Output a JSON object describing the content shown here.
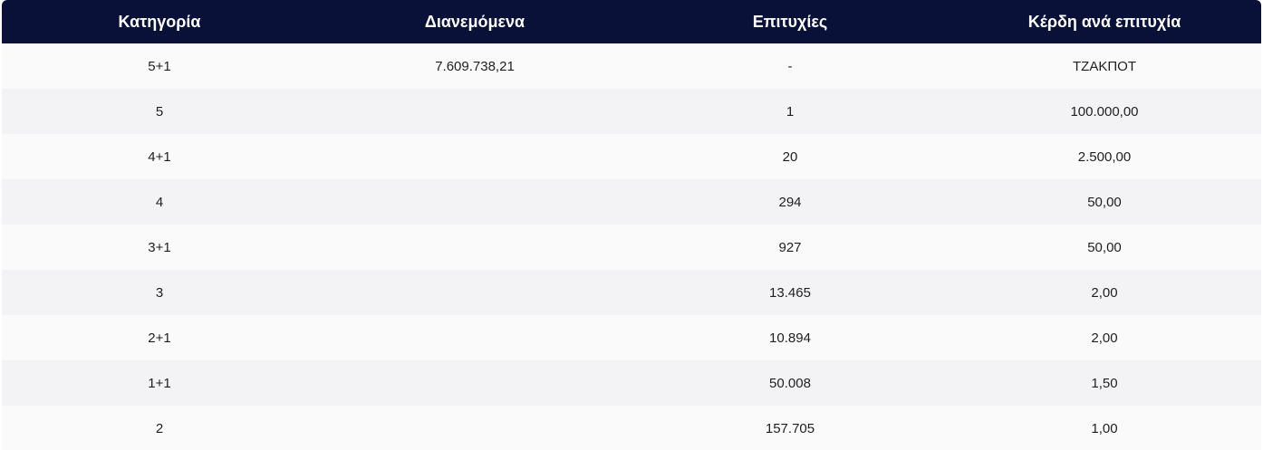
{
  "table": {
    "headers": [
      "Κατηγορία",
      "Διανεμόμενα",
      "Επιτυχίες",
      "Κέρδη ανά επιτυχία"
    ],
    "rows": [
      [
        "5+1",
        "7.609.738,21",
        "-",
        "ΤΖΑΚΠΟΤ"
      ],
      [
        "5",
        "",
        "1",
        "100.000,00"
      ],
      [
        "4+1",
        "",
        "20",
        "2.500,00"
      ],
      [
        "4",
        "",
        "294",
        "50,00"
      ],
      [
        "3+1",
        "",
        "927",
        "50,00"
      ],
      [
        "3",
        "",
        "13.465",
        "2,00"
      ],
      [
        "2+1",
        "",
        "10.894",
        "2,00"
      ],
      [
        "1+1",
        "",
        "50.008",
        "1,50"
      ],
      [
        "2",
        "",
        "157.705",
        "1,00"
      ]
    ]
  },
  "colors": {
    "header_bg": "#0a1138",
    "header_text": "#ffffff",
    "row_odd": "#fafafa",
    "row_even": "#f3f3f5"
  }
}
